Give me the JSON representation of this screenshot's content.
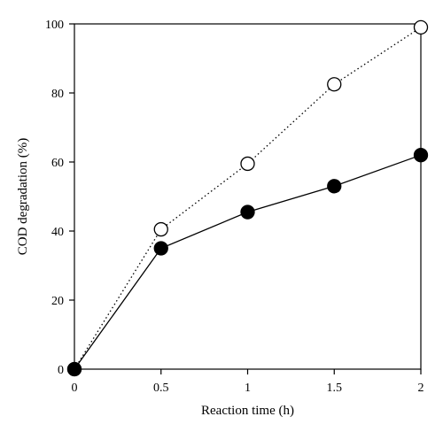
{
  "chart_data": {
    "type": "line",
    "title": "",
    "xlabel": "Reaction time (h)",
    "ylabel": "COD degradation (%)",
    "xlim": [
      0,
      2
    ],
    "ylim": [
      0,
      100
    ],
    "x_ticks": [
      0,
      0.5,
      1,
      1.5,
      2
    ],
    "x_tick_labels": [
      "0",
      "0.5",
      "1",
      "1.5",
      "2"
    ],
    "y_ticks": [
      0,
      20,
      40,
      60,
      80,
      100
    ],
    "y_tick_labels": [
      "0",
      "20",
      "40",
      "60",
      "80",
      "100"
    ],
    "grid": false,
    "legend": "none",
    "x": [
      0,
      0.5,
      1,
      1.5,
      2
    ],
    "series": [
      {
        "marker": "open-circle",
        "line_style": "dotted",
        "color": "#000000",
        "values": [
          0,
          40.5,
          59.5,
          82.5,
          99
        ]
      },
      {
        "marker": "filled-circle",
        "line_style": "solid",
        "color": "#000000",
        "values": [
          0,
          35,
          45.5,
          53,
          62
        ]
      }
    ]
  }
}
